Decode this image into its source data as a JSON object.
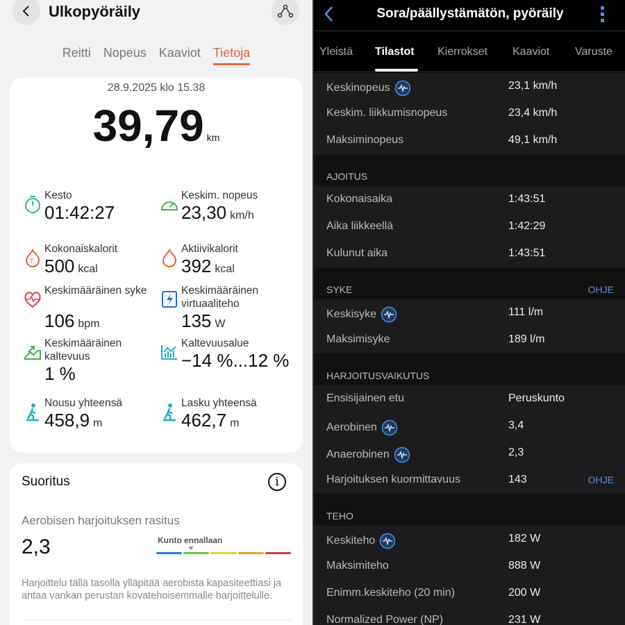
{
  "left": {
    "title": "Ulkopyöräily",
    "tabs": [
      "Reitti",
      "Nopeus",
      "Kaaviot",
      "Tietoja"
    ],
    "active_tab": "Tietoja",
    "date": "28.9.2025 klo 15.38",
    "distance": "39,79",
    "distance_unit": "km",
    "stats": [
      {
        "label": "Kesto",
        "value": "01:42:27",
        "unit": "",
        "icon": "stopwatch-icon",
        "color": "#2bb59a"
      },
      {
        "label": "Keskim. nopeus",
        "value": "23,30",
        "unit": "km/h",
        "icon": "speedometer-icon",
        "color": "#3cb54a"
      },
      {
        "label": "Kokonaiskalorit",
        "value": "500",
        "unit": "kcal",
        "icon": "flame-total-icon",
        "color": "#e8623c"
      },
      {
        "label": "Aktiivikalorit",
        "value": "392",
        "unit": "kcal",
        "icon": "flame-icon",
        "color": "#e8623c"
      },
      {
        "label": "Keskimääräinen syke",
        "value": "106",
        "unit": "bpm",
        "icon": "heart-rate-icon",
        "color": "#e23b5a"
      },
      {
        "label": "Keskimääräinen virtuaaliteho",
        "value": "135",
        "unit": "W",
        "icon": "power-avg-icon",
        "color": "#1f6fd6"
      },
      {
        "label": "Keskimääräinen kaltevuus",
        "value": "1 %",
        "unit": "",
        "icon": "slope-icon",
        "color": "#3cb54a"
      },
      {
        "label": "Kaltevuusalue",
        "value": "−14 %...12 %",
        "unit": "",
        "icon": "bar-chart-icon",
        "color": "#1fb0c0"
      },
      {
        "label": "Nousu yhteensä",
        "value": "458,9",
        "unit": "m",
        "icon": "hiker-up-icon",
        "color": "#1fb0c0"
      },
      {
        "label": "Lasku yhteensä",
        "value": "462,7",
        "unit": "m",
        "icon": "hiker-down-icon",
        "color": "#1fb0c0"
      }
    ],
    "performance": {
      "title": "Suoritus",
      "subtitle": "Aerobisen harjoituksen rasitus",
      "value": "2,3",
      "level_label": "Kunto ennallaan",
      "level_colors": [
        "#1f7fd6",
        "#6cc644",
        "#e3cf3a",
        "#e8a23a",
        "#d83a3a"
      ],
      "description": "Harjoittelu tällä tasolla ylläpitää aerobista kapasiteettiasi ja antaa vankan perustan kovatehoisemmalle harjoittelulle."
    }
  },
  "right": {
    "title": "Sora/päällystämätön, pyöräily",
    "tabs": [
      "Yleistä",
      "Tilastot",
      "Kierrokset",
      "Kaaviot",
      "Varuste"
    ],
    "active_tab": "Tilastot",
    "help": "OHJE",
    "sections": [
      {
        "title": "",
        "rows": [
          [
            "Keskinopeus",
            "23,1 km/h",
            true
          ],
          [
            "Keskim. liikkumisnopeus",
            "23,4 km/h",
            false
          ],
          [
            "Maksiminopeus",
            "49,1 km/h",
            false
          ]
        ]
      },
      {
        "title": "AJOITUS",
        "rows": [
          [
            "Kokonaisaika",
            "1:43:51",
            false
          ],
          [
            "Aika liikkeellä",
            "1:42:29",
            false
          ],
          [
            "Kulunut aika",
            "1:43:51",
            false
          ]
        ]
      },
      {
        "title": "SYKE",
        "help": true,
        "rows": [
          [
            "Keskisyke",
            "111 l/m",
            true
          ],
          [
            "Maksimisyke",
            "189 l/m",
            false
          ]
        ]
      },
      {
        "title": "HARJOITUSVAIKUTUS",
        "rows": [
          [
            "Ensisijainen etu",
            "Peruskunto",
            false
          ],
          [
            "Aerobinen",
            "3,4",
            true
          ],
          [
            "Anaerobinen",
            "2,3",
            true
          ],
          [
            "Harjoituksen kuormittavuus",
            "143",
            false,
            true
          ]
        ]
      },
      {
        "title": "TEHO",
        "rows": [
          [
            "Keskiteho",
            "182 W",
            true
          ],
          [
            "Maksimiteho",
            "888 W",
            false
          ],
          [
            "Enimm.keskiteho (20 min)",
            "200 W",
            false
          ],
          [
            "Normalized Power (NP)",
            "231 W",
            false
          ]
        ]
      }
    ]
  }
}
